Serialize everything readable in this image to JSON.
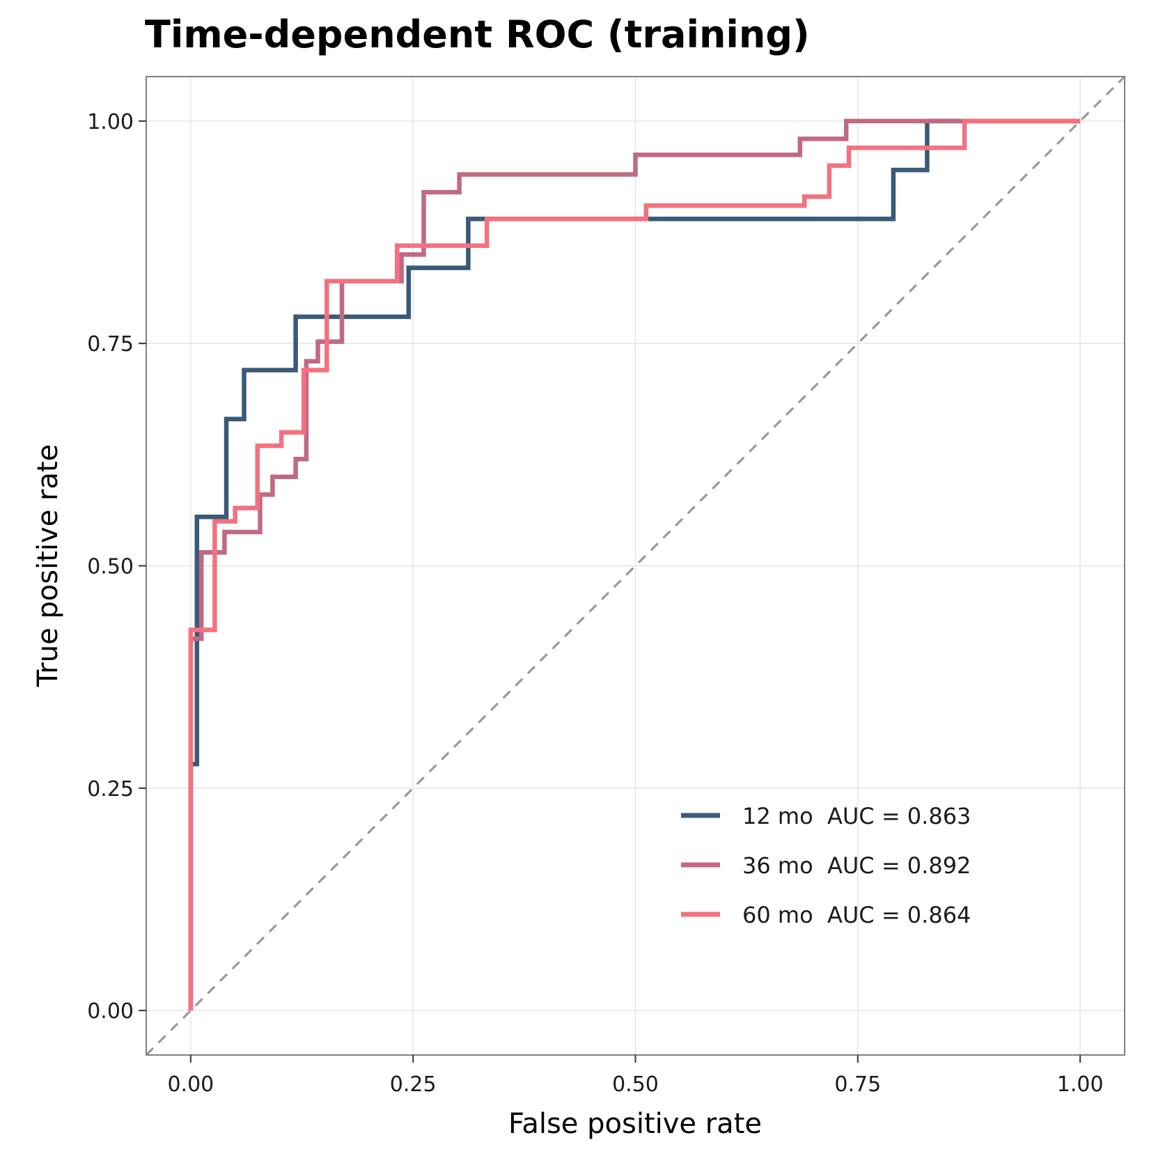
{
  "chart_data": {
    "type": "line",
    "title": "Time-dependent ROC (training)",
    "xlabel": "False positive rate",
    "ylabel": "True positive rate",
    "xlim": [
      -0.05,
      1.05
    ],
    "ylim": [
      -0.05,
      1.05
    ],
    "x_ticks": [
      0,
      0.25,
      0.5,
      0.75,
      1
    ],
    "y_ticks": [
      0,
      0.25,
      0.5,
      0.75,
      1
    ],
    "x_tick_labels": [
      "0.00",
      "0.25",
      "0.50",
      "0.75",
      "1.00"
    ],
    "y_tick_labels": [
      "0.00",
      "0.25",
      "0.50",
      "0.75",
      "1.00"
    ],
    "grid": true,
    "legend_position": "bottom-right",
    "reference_line": "diagonal dashed",
    "reference_color": "#999999",
    "series": [
      {
        "name": "12 mo  AUC = 0.863",
        "color": "#3a5a78",
        "points": [
          [
            0,
            0
          ],
          [
            0,
            0.277
          ],
          [
            0.007,
            0.277
          ],
          [
            0.007,
            0.555
          ],
          [
            0.04,
            0.555
          ],
          [
            0.04,
            0.665
          ],
          [
            0.06,
            0.665
          ],
          [
            0.06,
            0.72
          ],
          [
            0.118,
            0.72
          ],
          [
            0.118,
            0.78
          ],
          [
            0.245,
            0.78
          ],
          [
            0.245,
            0.835
          ],
          [
            0.312,
            0.835
          ],
          [
            0.312,
            0.89
          ],
          [
            0.79,
            0.89
          ],
          [
            0.79,
            0.945
          ],
          [
            0.828,
            0.945
          ],
          [
            0.828,
            1
          ],
          [
            1,
            1
          ]
        ]
      },
      {
        "name": "36 mo  AUC = 0.892",
        "color": "#c06a82",
        "points": [
          [
            0,
            0
          ],
          [
            0,
            0.418
          ],
          [
            0.012,
            0.418
          ],
          [
            0.012,
            0.515
          ],
          [
            0.038,
            0.515
          ],
          [
            0.038,
            0.538
          ],
          [
            0.078,
            0.538
          ],
          [
            0.078,
            0.58
          ],
          [
            0.092,
            0.58
          ],
          [
            0.092,
            0.6
          ],
          [
            0.118,
            0.6
          ],
          [
            0.118,
            0.62
          ],
          [
            0.13,
            0.62
          ],
          [
            0.13,
            0.73
          ],
          [
            0.143,
            0.73
          ],
          [
            0.143,
            0.752
          ],
          [
            0.17,
            0.752
          ],
          [
            0.17,
            0.82
          ],
          [
            0.237,
            0.82
          ],
          [
            0.237,
            0.85
          ],
          [
            0.262,
            0.85
          ],
          [
            0.262,
            0.92
          ],
          [
            0.302,
            0.92
          ],
          [
            0.302,
            0.94
          ],
          [
            0.5,
            0.94
          ],
          [
            0.5,
            0.962
          ],
          [
            0.685,
            0.962
          ],
          [
            0.685,
            0.98
          ],
          [
            0.737,
            0.98
          ],
          [
            0.737,
            1
          ],
          [
            1,
            1
          ]
        ]
      },
      {
        "name": "60 mo  AUC = 0.864",
        "color": "#f4717f",
        "points": [
          [
            0,
            0
          ],
          [
            0,
            0.428
          ],
          [
            0.027,
            0.428
          ],
          [
            0.027,
            0.55
          ],
          [
            0.05,
            0.55
          ],
          [
            0.05,
            0.565
          ],
          [
            0.075,
            0.565
          ],
          [
            0.075,
            0.635
          ],
          [
            0.102,
            0.635
          ],
          [
            0.102,
            0.65
          ],
          [
            0.127,
            0.65
          ],
          [
            0.127,
            0.72
          ],
          [
            0.153,
            0.72
          ],
          [
            0.153,
            0.82
          ],
          [
            0.232,
            0.82
          ],
          [
            0.232,
            0.86
          ],
          [
            0.333,
            0.86
          ],
          [
            0.333,
            0.89
          ],
          [
            0.512,
            0.89
          ],
          [
            0.512,
            0.905
          ],
          [
            0.69,
            0.905
          ],
          [
            0.69,
            0.915
          ],
          [
            0.718,
            0.915
          ],
          [
            0.718,
            0.95
          ],
          [
            0.74,
            0.95
          ],
          [
            0.74,
            0.97
          ],
          [
            0.87,
            0.97
          ],
          [
            0.87,
            1
          ],
          [
            1,
            1
          ]
        ]
      }
    ]
  }
}
